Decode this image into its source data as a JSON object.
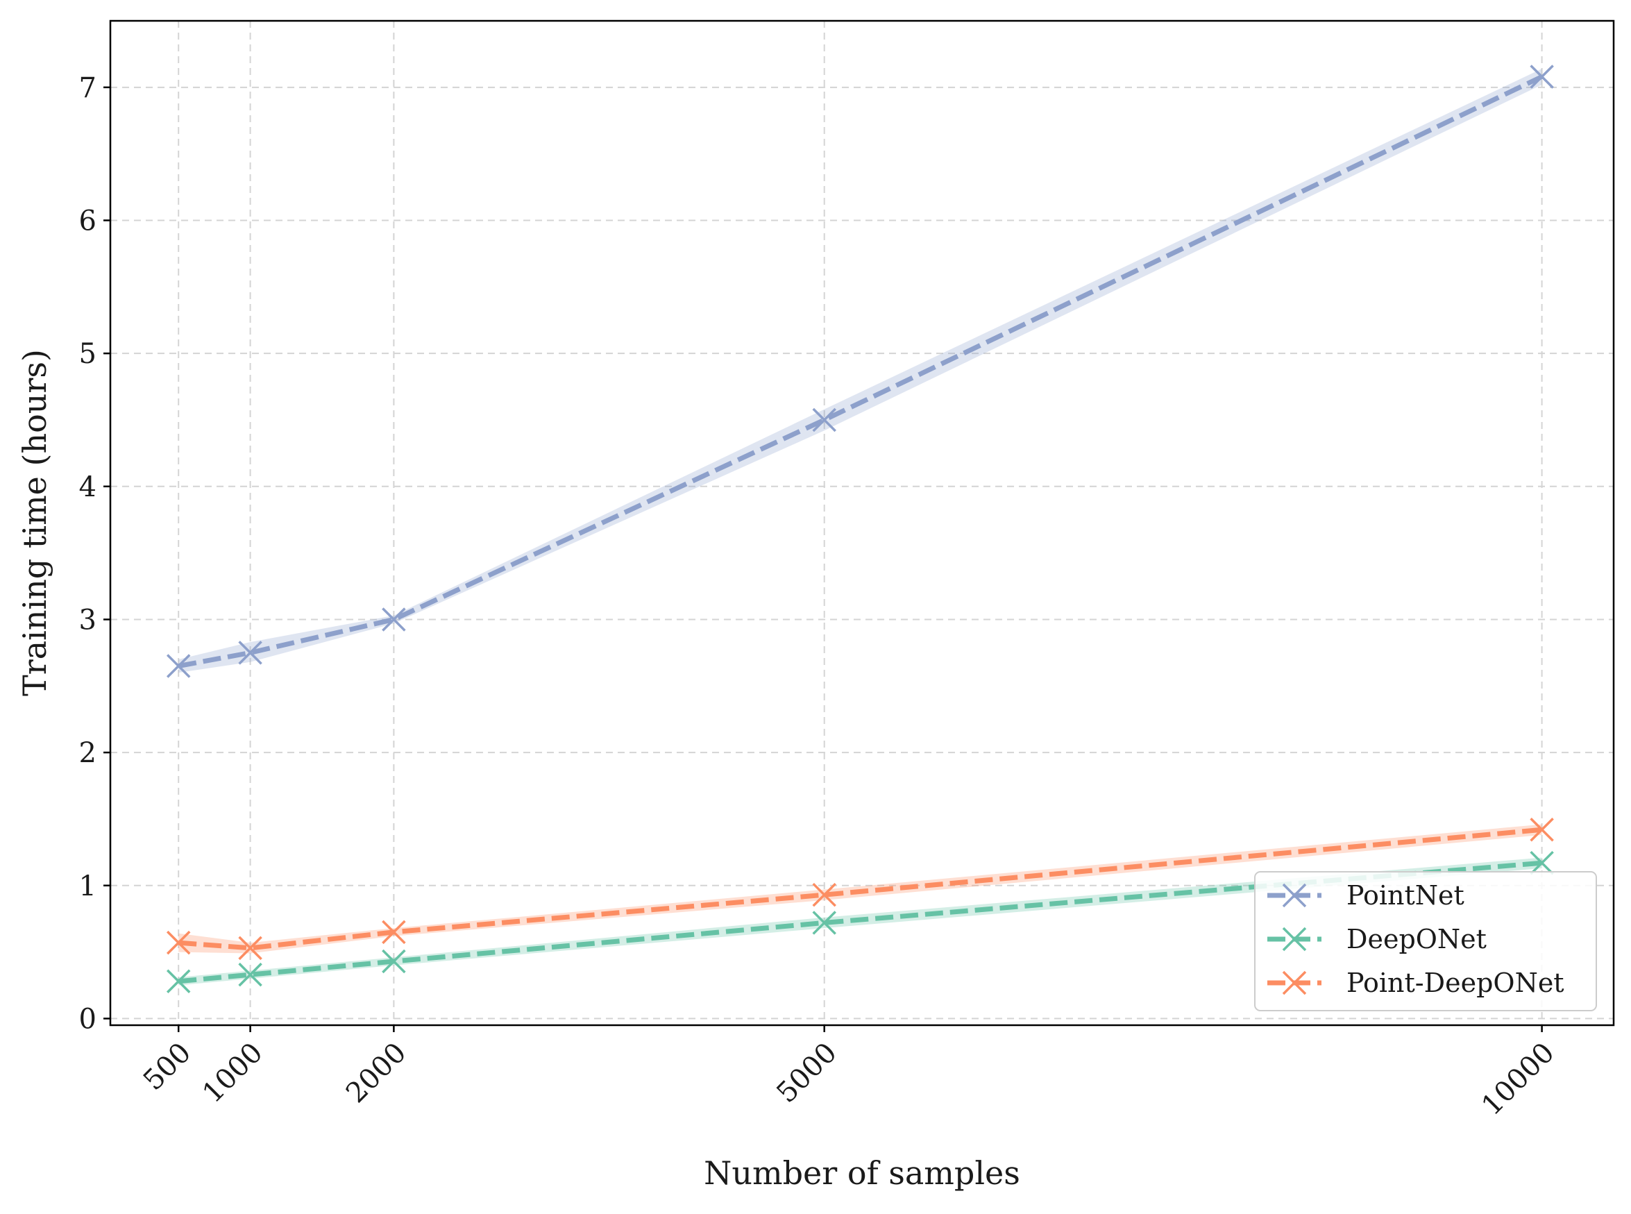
{
  "chart_data": {
    "type": "line",
    "title": "",
    "xlabel": "Number of samples",
    "ylabel": "Training time (hours)",
    "x": [
      500,
      1000,
      2000,
      5000,
      10000
    ],
    "x_tick_labels": [
      "500",
      "1000",
      "2000",
      "5000",
      "10000"
    ],
    "y_ticks": [
      0,
      1,
      2,
      3,
      4,
      5,
      6,
      7
    ],
    "y_tick_labels": [
      "0",
      "1",
      "2",
      "3",
      "4",
      "5",
      "6",
      "7"
    ],
    "xlim": [
      25,
      10500
    ],
    "ylim": [
      -0.05,
      7.5
    ],
    "grid": true,
    "legend_position": "lower-right",
    "series": [
      {
        "name": "PointNet",
        "color": "#8da0cb",
        "values": [
          2.65,
          2.75,
          3.0,
          4.5,
          7.08
        ],
        "lower": [
          2.6,
          2.68,
          2.97,
          4.42,
          7.02
        ],
        "upper": [
          2.7,
          2.83,
          3.03,
          4.58,
          7.14
        ]
      },
      {
        "name": "DeepONet",
        "color": "#66c2a5",
        "values": [
          0.28,
          0.33,
          0.43,
          0.72,
          1.17
        ],
        "lower": [
          0.25,
          0.3,
          0.4,
          0.68,
          1.13
        ],
        "upper": [
          0.31,
          0.36,
          0.46,
          0.76,
          1.21
        ]
      },
      {
        "name": "Point-DeepONet",
        "color": "#fc8d62",
        "values": [
          0.57,
          0.53,
          0.65,
          0.93,
          1.42
        ],
        "lower": [
          0.5,
          0.49,
          0.62,
          0.89,
          1.38
        ],
        "upper": [
          0.64,
          0.57,
          0.68,
          0.97,
          1.46
        ]
      }
    ]
  }
}
